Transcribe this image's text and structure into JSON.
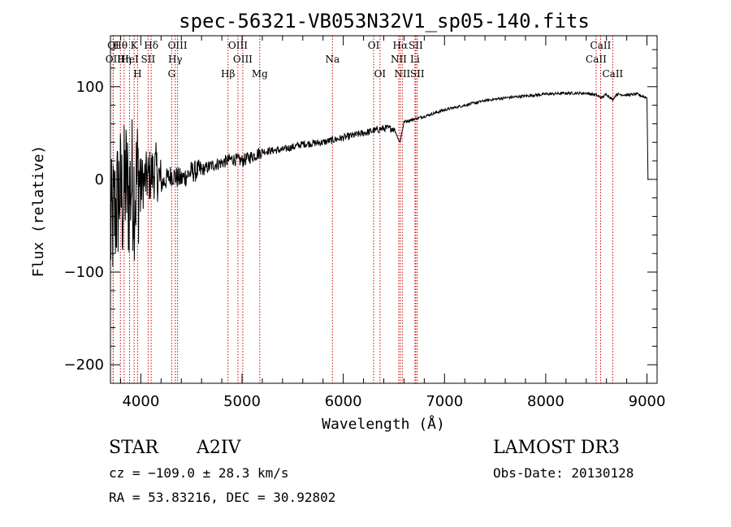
{
  "chart_data": {
    "type": "line",
    "title": "spec-56321-VB053N32V1_sp05-140.fits",
    "xlabel": "Wavelength (Å)",
    "ylabel": "Flux (relative)",
    "xlim": [
      3700,
      9100
    ],
    "ylim": [
      -220,
      155
    ],
    "xticks": [
      4000,
      5000,
      6000,
      7000,
      8000,
      9000
    ],
    "xtick_labels": [
      "4000",
      "5000",
      "6000",
      "7000",
      "8000",
      "9000"
    ],
    "yticks": [
      -200,
      -100,
      0,
      100
    ],
    "ytick_labels": [
      "−200",
      "−100",
      "0",
      "100"
    ],
    "series": [
      {
        "name": "flux",
        "x": [
          3700,
          3730,
          3760,
          3790,
          3820,
          3850,
          3880,
          3910,
          3940,
          3970,
          4000,
          4050,
          4100,
          4150,
          4200,
          4300,
          4400,
          4500,
          4600,
          4700,
          4800,
          4900,
          5000,
          5100,
          5200,
          5400,
          5600,
          5800,
          6000,
          6200,
          6400,
          6500,
          6560,
          6600,
          6700,
          6800,
          7000,
          7200,
          7400,
          7600,
          7800,
          8000,
          8200,
          8400,
          8500,
          8550,
          8600,
          8660,
          8700,
          8800,
          8900,
          9000,
          9010
        ],
        "y": [
          -60,
          -40,
          -30,
          -10,
          -25,
          0,
          -20,
          0,
          -15,
          5,
          -5,
          0,
          5,
          10,
          -5,
          5,
          0,
          8,
          10,
          15,
          18,
          22,
          20,
          25,
          30,
          32,
          38,
          40,
          45,
          50,
          55,
          55,
          40,
          62,
          65,
          68,
          75,
          80,
          85,
          88,
          90,
          92,
          93,
          93,
          91,
          88,
          92,
          86,
          92,
          91,
          92,
          88,
          0
        ]
      }
    ],
    "spectral_lines": [
      {
        "label": "Hθ",
        "wavelength": 3798
      },
      {
        "label": "K",
        "wavelength": 3934
      },
      {
        "label": "Hδ",
        "wavelength": 4102
      },
      {
        "label": "OIII",
        "wavelength": 4363
      },
      {
        "label": "OIII",
        "wavelength": 4959
      },
      {
        "label": "OI",
        "wavelength": 6300
      },
      {
        "label": "Hα",
        "wavelength": 6563
      },
      {
        "label": "SII",
        "wavelength": 6716
      },
      {
        "label": "CaII",
        "wavelength": 8542
      },
      {
        "label": "OI",
        "wavelength": 3727
      },
      {
        "label": "HeI",
        "wavelength": 3889
      },
      {
        "label": "SII",
        "wavelength": 4072
      },
      {
        "label": "Hγ",
        "wavelength": 4340
      },
      {
        "label": "OIII",
        "wavelength": 5007
      },
      {
        "label": "Na",
        "wavelength": 5893
      },
      {
        "label": "NII",
        "wavelength": 6548
      },
      {
        "label": "Li",
        "wavelength": 6708
      },
      {
        "label": "CaII",
        "wavelength": 8498
      },
      {
        "label": "OII",
        "wavelength": 3727
      },
      {
        "label": "Hη",
        "wavelength": 3835
      },
      {
        "label": "H",
        "wavelength": 3968
      },
      {
        "label": "G",
        "wavelength": 4305
      },
      {
        "label": "Hβ",
        "wavelength": 4861
      },
      {
        "label": "Mg",
        "wavelength": 5175
      },
      {
        "label": "OI",
        "wavelength": 6363
      },
      {
        "label": "NII",
        "wavelength": 6583
      },
      {
        "label": "SII",
        "wavelength": 6731
      },
      {
        "label": "CaII",
        "wavelength": 8662
      }
    ]
  },
  "info": {
    "object_class": "STAR",
    "subclass": "A2IV",
    "survey": "LAMOST DR3",
    "redshift": "cz = −109.0 ± 28.3 km/s",
    "obs_date": "Obs-Date: 20130128",
    "coords": "RA =  53.83216, DEC =  30.92802"
  },
  "colors": {
    "axis": "#000000",
    "line_marker": "#cc0000",
    "spectrum": "#000000"
  }
}
